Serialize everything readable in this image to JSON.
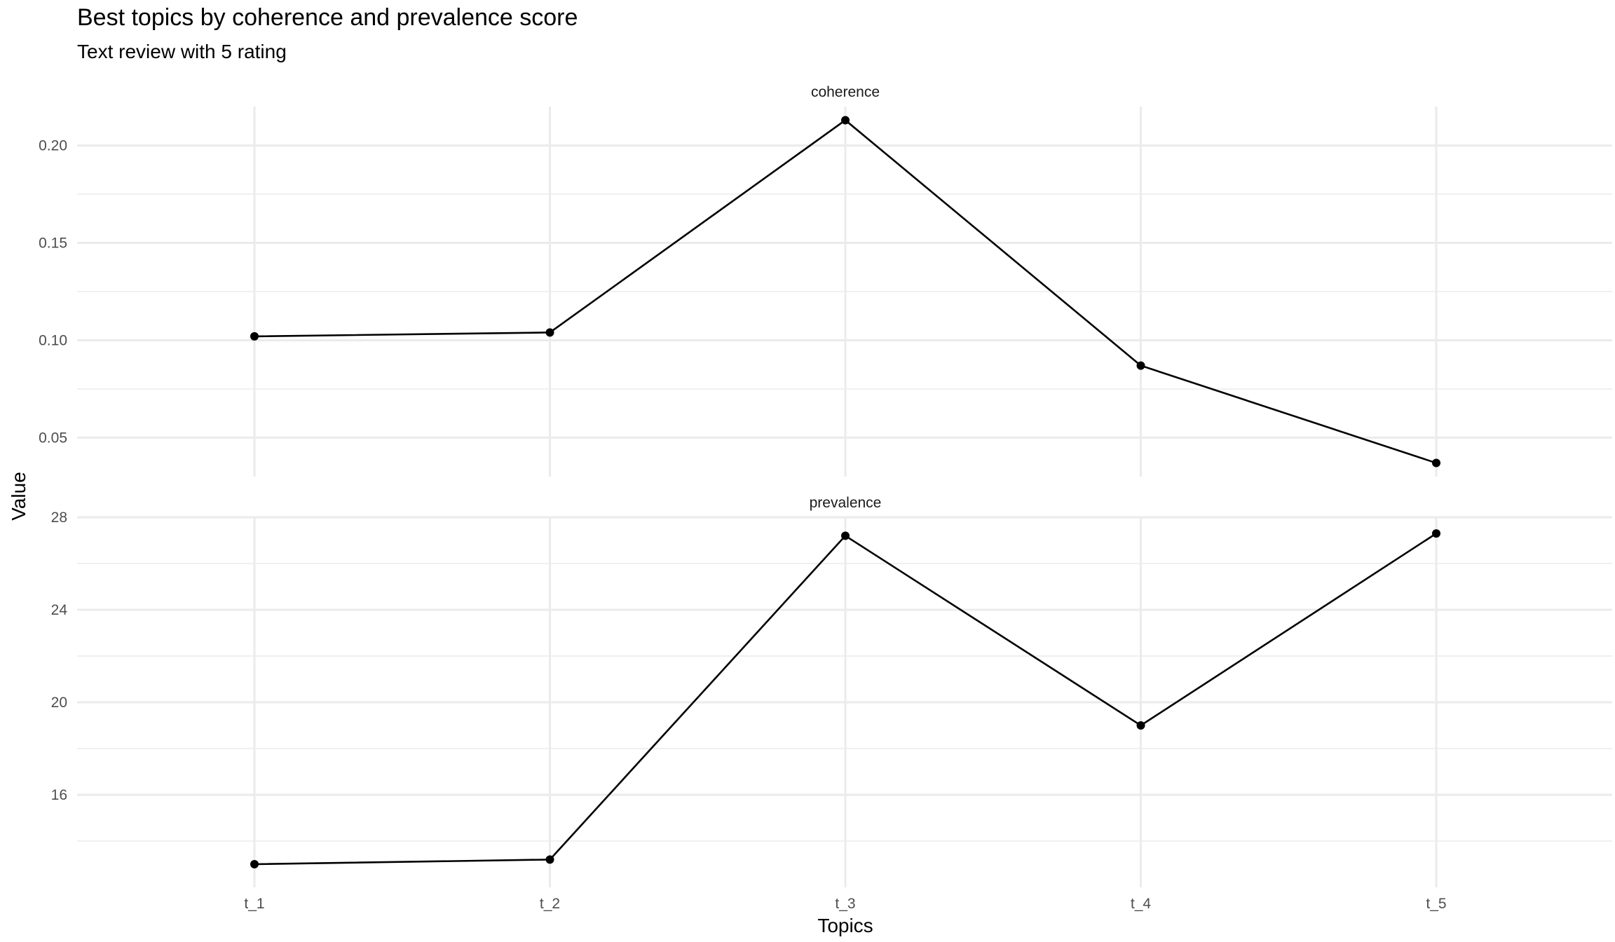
{
  "title": "Best topics by coherence and prevalence score",
  "subtitle": "Text review with 5 rating",
  "chart_data": {
    "type": "line",
    "title": "Best topics by coherence and prevalence score",
    "subtitle": "Text review with 5 rating",
    "xlabel": "Topics",
    "ylabel": "Value",
    "categories": [
      "t_1",
      "t_2",
      "t_3",
      "t_4",
      "t_5"
    ],
    "grid": true,
    "legend": "none",
    "facets": [
      {
        "name": "coherence",
        "values": [
          0.102,
          0.104,
          0.213,
          0.087,
          0.037
        ],
        "ylim": [
          0.03,
          0.22
        ],
        "yticks": [
          0.05,
          0.1,
          0.15,
          0.2
        ],
        "yticklabels": [
          "0.05",
          "0.10",
          "0.15",
          "0.20"
        ]
      },
      {
        "name": "prevalence",
        "values": [
          13.0,
          13.2,
          27.2,
          19.0,
          27.3
        ],
        "ylim": [
          12.0,
          28.0
        ],
        "yticks": [
          16,
          20,
          24,
          28
        ],
        "yticklabels": [
          "16",
          "20",
          "24",
          "28"
        ]
      }
    ],
    "colors": {
      "line": "#000000",
      "point": "#000000",
      "grid": "#ebebeb"
    }
  }
}
